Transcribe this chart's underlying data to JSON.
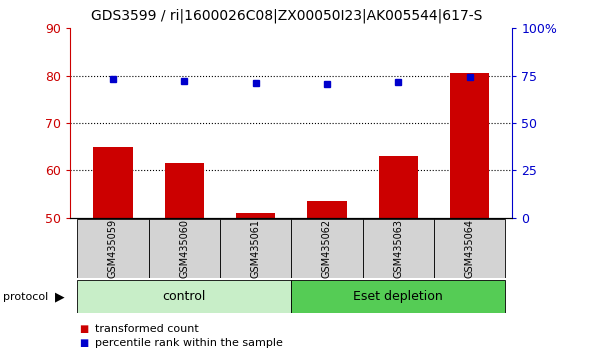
{
  "title": "GDS3599 / ri|1600026C08|ZX00050I23|AK005544|617-S",
  "samples": [
    "GSM435059",
    "GSM435060",
    "GSM435061",
    "GSM435062",
    "GSM435063",
    "GSM435064"
  ],
  "red_values": [
    65.0,
    61.5,
    51.0,
    53.5,
    63.0,
    80.5
  ],
  "blue_values": [
    73.0,
    72.0,
    71.0,
    70.5,
    71.5,
    74.5
  ],
  "groups": [
    {
      "label": "control",
      "start": 0,
      "end": 3,
      "color": "#C8EEC8"
    },
    {
      "label": "Eset depletion",
      "start": 3,
      "end": 6,
      "color": "#55CC55"
    }
  ],
  "left_ylim": [
    50,
    90
  ],
  "left_yticks": [
    50,
    60,
    70,
    80,
    90
  ],
  "right_ylim": [
    0,
    100
  ],
  "right_yticks": [
    0,
    25,
    50,
    75,
    100
  ],
  "right_yticklabels": [
    "0",
    "25",
    "50",
    "75",
    "100%"
  ],
  "hlines": [
    60,
    70,
    80
  ],
  "bar_color": "#CC0000",
  "dot_color": "#0000CC",
  "left_tick_color": "#CC0000",
  "right_tick_color": "#0000CC",
  "protocol_label": "protocol",
  "legend": [
    {
      "color": "#CC0000",
      "label": "transformed count"
    },
    {
      "color": "#0000CC",
      "label": "percentile rank within the sample"
    }
  ],
  "title_fontsize": 10,
  "sample_fontsize": 7,
  "group_fontsize": 9,
  "legend_fontsize": 8,
  "bar_width": 0.55
}
